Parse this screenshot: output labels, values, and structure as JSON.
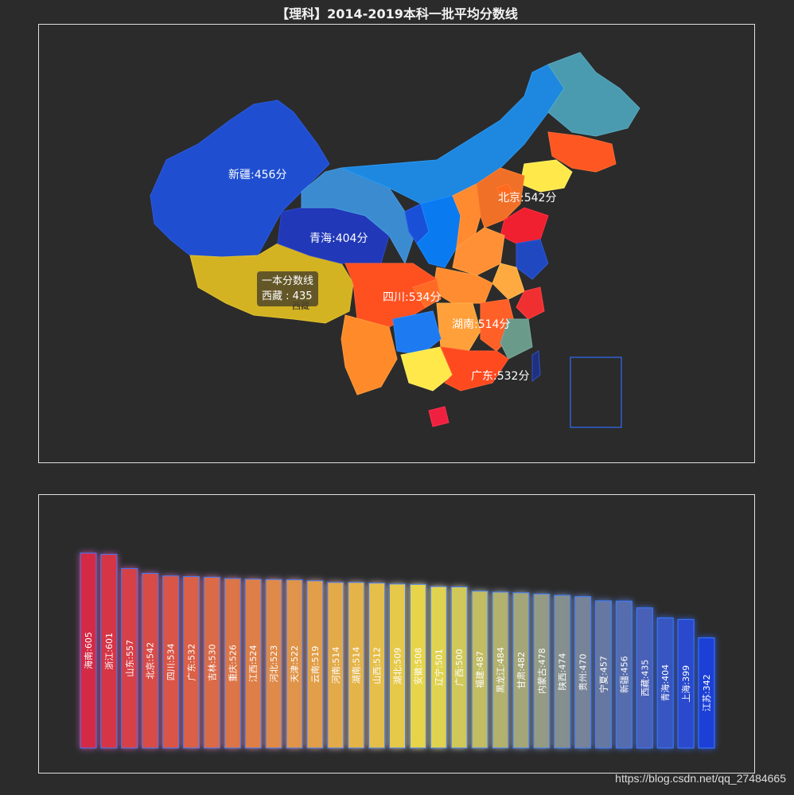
{
  "title": "【理科】2014-2019本科一批平均分数线",
  "map": {
    "labels": [
      {
        "province": "新疆",
        "text": "新疆:456分"
      },
      {
        "province": "青海",
        "text": "青海:404分"
      },
      {
        "province": "北京",
        "text": "北京:542分"
      },
      {
        "province": "四川",
        "text": "四川:534分"
      },
      {
        "province": "湖南",
        "text": "湖南:514分"
      },
      {
        "province": "广东",
        "text": "广东:532分"
      }
    ],
    "hidden_label": "西藏",
    "tooltip": {
      "title": "一本分数线",
      "province": "西藏",
      "value": "435"
    }
  },
  "chart_data": {
    "type": "bar",
    "title": "【理科】2014-2019本科一批平均分数线",
    "categories": [
      "海南",
      "浙江",
      "山东",
      "北京",
      "四川",
      "广东",
      "吉林",
      "重庆",
      "江西",
      "河北",
      "天津",
      "云南",
      "河南",
      "湖南",
      "山西",
      "湖北",
      "安徽",
      "辽宁",
      "广西",
      "福建",
      "黑龙江",
      "甘肃",
      "内蒙古",
      "陕西",
      "贵州",
      "宁夏",
      "新疆",
      "西藏",
      "青海",
      "上海",
      "江苏"
    ],
    "values": [
      605,
      601,
      557,
      542,
      534,
      532,
      530,
      526,
      524,
      523,
      522,
      519,
      514,
      514,
      512,
      509,
      508,
      501,
      500,
      487,
      484,
      482,
      478,
      474,
      470,
      457,
      456,
      435,
      404,
      399,
      342
    ],
    "ylim": [
      0,
      605
    ],
    "colors": {
      "high": "#d42b45",
      "mid": "#e8d94a",
      "low": "#1a3fd6"
    }
  },
  "watermark": "https://blog.csdn.net/qq_27484665"
}
